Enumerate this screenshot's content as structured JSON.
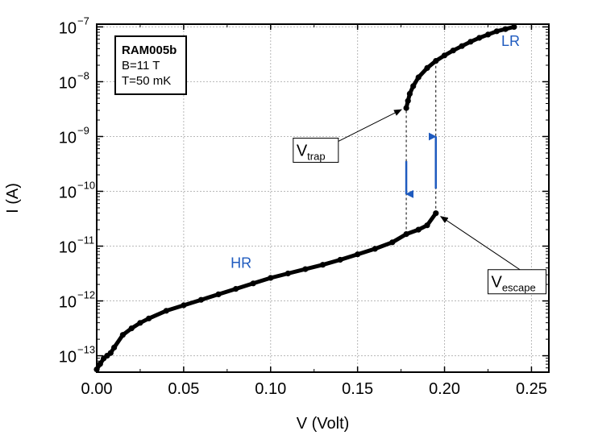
{
  "chart_data": {
    "type": "scatter",
    "title": "",
    "xlabel": "V (Volt)",
    "ylabel": "I (A)",
    "xlim": [
      0.0,
      0.26
    ],
    "ylim_log10": [
      -13.3,
      -6.95
    ],
    "yscale": "log",
    "x_ticks": [
      0.0,
      0.05,
      0.1,
      0.15,
      0.2,
      0.25
    ],
    "x_tick_labels": [
      "0.00",
      "0.05",
      "0.10",
      "0.15",
      "0.20",
      "0.25"
    ],
    "y_tick_exponents": [
      -13,
      -12,
      -11,
      -10,
      -9,
      -8,
      -7
    ],
    "y_tick_base": "10",
    "grid": true,
    "series": [
      {
        "name": "HR",
        "color": "#000000",
        "x_log10y": [
          [
            0.0,
            -13.25
          ],
          [
            0.002,
            -13.15
          ],
          [
            0.004,
            -13.05
          ],
          [
            0.006,
            -13.0
          ],
          [
            0.008,
            -12.95
          ],
          [
            0.01,
            -12.85
          ],
          [
            0.015,
            -12.62
          ],
          [
            0.02,
            -12.5
          ],
          [
            0.025,
            -12.4
          ],
          [
            0.03,
            -12.32
          ],
          [
            0.04,
            -12.18
          ],
          [
            0.05,
            -12.08
          ],
          [
            0.06,
            -11.98
          ],
          [
            0.07,
            -11.88
          ],
          [
            0.08,
            -11.78
          ],
          [
            0.09,
            -11.68
          ],
          [
            0.1,
            -11.58
          ],
          [
            0.11,
            -11.5
          ],
          [
            0.12,
            -11.42
          ],
          [
            0.13,
            -11.34
          ],
          [
            0.14,
            -11.25
          ],
          [
            0.15,
            -11.15
          ],
          [
            0.16,
            -11.05
          ],
          [
            0.17,
            -10.93
          ],
          [
            0.178,
            -10.78
          ],
          [
            0.185,
            -10.7
          ],
          [
            0.19,
            -10.62
          ],
          [
            0.195,
            -10.4
          ]
        ]
      },
      {
        "name": "LR",
        "color": "#000000",
        "x_log10y": [
          [
            0.178,
            -8.48
          ],
          [
            0.179,
            -8.35
          ],
          [
            0.18,
            -8.22
          ],
          [
            0.182,
            -8.08
          ],
          [
            0.185,
            -7.92
          ],
          [
            0.19,
            -7.75
          ],
          [
            0.195,
            -7.62
          ],
          [
            0.2,
            -7.52
          ],
          [
            0.205,
            -7.43
          ],
          [
            0.21,
            -7.35
          ],
          [
            0.215,
            -7.27
          ],
          [
            0.22,
            -7.2
          ],
          [
            0.225,
            -7.14
          ],
          [
            0.23,
            -7.08
          ],
          [
            0.235,
            -7.04
          ],
          [
            0.24,
            -7.0
          ]
        ]
      }
    ],
    "legend": {
      "name": "RAM005b",
      "line1": "B=11 T",
      "line2": "T=50 mK",
      "placement": "top-left"
    },
    "annotations": [
      {
        "text": "HR",
        "x": 0.083,
        "log10y": -11.4,
        "color": "#1f5bbf"
      },
      {
        "text": "LR",
        "x": 0.238,
        "log10y": -7.35,
        "color": "#1f5bbf"
      }
    ],
    "callouts": [
      {
        "main": "V",
        "sub": "trap",
        "at_x": 0.178,
        "at_log10y": -8.48,
        "box_x": 0.113,
        "box_log10y": -9.25
      },
      {
        "main": "V",
        "sub": "escape",
        "at_x": 0.195,
        "at_log10y": -10.4,
        "box_x": 0.225,
        "box_log10y": -11.65
      }
    ],
    "switching_arrows": [
      {
        "x": 0.178,
        "from_log10y": -9.45,
        "to_log10y": -10.05,
        "direction": "down",
        "color": "#1f5bbf"
      },
      {
        "x": 0.195,
        "from_log10y": -9.95,
        "to_log10y": -9.0,
        "direction": "up",
        "color": "#1f5bbf"
      }
    ],
    "dashed_lines": [
      {
        "x": 0.178,
        "from_log10y": -10.78,
        "to_log10y": -8.48
      },
      {
        "x": 0.195,
        "from_log10y": -10.4,
        "to_log10y": -7.62
      }
    ]
  }
}
